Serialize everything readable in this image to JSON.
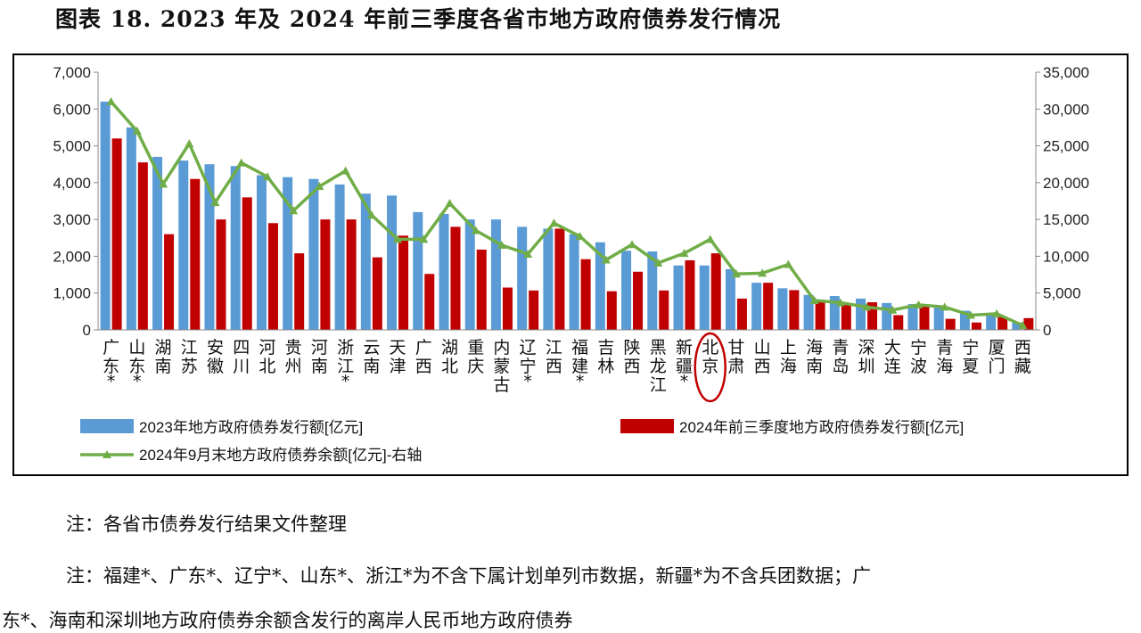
{
  "figure_title": "图表 18. 2023 年及 2024 年前三季度各省市地方政府债券发行情况",
  "notes": {
    "note1": "注：各省市债券发行结果文件整理",
    "note2_line1": "注：福建*、广东*、辽宁*、山东*、浙江*为不含下属计划单列市数据，新疆*为不含兵团数据；广",
    "note2_line2": "东*、海南和深圳地方政府债券余额含发行的离岸人民币地方政府债券"
  },
  "colors": {
    "bar2023": "#5b9bd5",
    "bar2024": "#c00000",
    "line": "#70ad47",
    "circle": "#c00000"
  },
  "chart_data": {
    "type": "bar",
    "categories": [
      {
        "lines": [
          "广",
          "东",
          "*"
        ]
      },
      {
        "lines": [
          "山",
          "东",
          "*"
        ]
      },
      {
        "lines": [
          "湖",
          "南"
        ]
      },
      {
        "lines": [
          "江",
          "苏"
        ]
      },
      {
        "lines": [
          "安",
          "徽"
        ]
      },
      {
        "lines": [
          "四",
          "川"
        ]
      },
      {
        "lines": [
          "河",
          "北"
        ]
      },
      {
        "lines": [
          "贵",
          "州"
        ]
      },
      {
        "lines": [
          "河",
          "南"
        ]
      },
      {
        "lines": [
          "浙",
          "江",
          "*"
        ]
      },
      {
        "lines": [
          "云",
          "南"
        ]
      },
      {
        "lines": [
          "天",
          "津"
        ]
      },
      {
        "lines": [
          "广",
          "西"
        ]
      },
      {
        "lines": [
          "湖",
          "北"
        ]
      },
      {
        "lines": [
          "重",
          "庆"
        ]
      },
      {
        "lines": [
          "内",
          "蒙",
          "古"
        ]
      },
      {
        "lines": [
          "辽",
          "宁",
          "*"
        ]
      },
      {
        "lines": [
          "江",
          "西"
        ]
      },
      {
        "lines": [
          "福",
          "建",
          "*"
        ]
      },
      {
        "lines": [
          "吉",
          "林"
        ]
      },
      {
        "lines": [
          "陕",
          "西"
        ]
      },
      {
        "lines": [
          "黑",
          "龙",
          "江"
        ]
      },
      {
        "lines": [
          "新",
          "疆",
          "*"
        ]
      },
      {
        "lines": [
          "北",
          "京"
        ]
      },
      {
        "lines": [
          "甘",
          "肃"
        ]
      },
      {
        "lines": [
          "山",
          "西"
        ]
      },
      {
        "lines": [
          "上",
          "海"
        ]
      },
      {
        "lines": [
          "海",
          "南"
        ]
      },
      {
        "lines": [
          "青",
          "岛"
        ]
      },
      {
        "lines": [
          "深",
          "圳"
        ]
      },
      {
        "lines": [
          "大",
          "连"
        ]
      },
      {
        "lines": [
          "宁",
          "波"
        ]
      },
      {
        "lines": [
          "青",
          "海"
        ]
      },
      {
        "lines": [
          "宁",
          "夏"
        ]
      },
      {
        "lines": [
          "厦",
          "门"
        ]
      },
      {
        "lines": [
          "西",
          "藏"
        ]
      }
    ],
    "y_left": {
      "min": 0,
      "max": 7000,
      "ticks": [
        "0",
        "1,000",
        "2,000",
        "3,000",
        "4,000",
        "5,000",
        "6,000",
        "7,000"
      ]
    },
    "y_right": {
      "min": 0,
      "max": 35000,
      "ticks": [
        "0",
        "5,000",
        "10,000",
        "15,000",
        "20,000",
        "25,000",
        "30,000",
        "35,000"
      ]
    },
    "series": [
      {
        "name": "2023年地方政府债券发行额[亿元]",
        "axis": "left",
        "kind": "bar",
        "values": [
          6200,
          5500,
          4700,
          4600,
          4500,
          4450,
          4200,
          4150,
          4100,
          3950,
          3700,
          3650,
          3200,
          3150,
          3000,
          3000,
          2800,
          2750,
          2600,
          2380,
          2150,
          2130,
          1750,
          1750,
          1650,
          1280,
          1130,
          950,
          920,
          850,
          730,
          700,
          600,
          520,
          450,
          200
        ]
      },
      {
        "name": "2024年前三季度地方政府债券发行额[亿元]",
        "axis": "left",
        "kind": "bar",
        "values": [
          5200,
          4550,
          2600,
          4100,
          3000,
          3600,
          2900,
          2080,
          3000,
          3000,
          1970,
          2560,
          1520,
          2800,
          2180,
          1150,
          1070,
          2750,
          1920,
          1050,
          1580,
          1070,
          1890,
          2080,
          850,
          1280,
          1080,
          800,
          700,
          750,
          400,
          650,
          300,
          200,
          350,
          320
        ]
      },
      {
        "name": "2024年9月末地方政府债券余额[亿元]-右轴",
        "axis": "right",
        "kind": "line",
        "values": [
          31000,
          27000,
          19800,
          25300,
          17300,
          22700,
          20800,
          16200,
          19500,
          21600,
          15600,
          12300,
          12300,
          17200,
          13500,
          11500,
          10300,
          14500,
          12700,
          9500,
          11600,
          9100,
          10400,
          12300,
          7600,
          7700,
          8900,
          4000,
          3700,
          3100,
          2700,
          3400,
          3100,
          2000,
          2200,
          600
        ]
      }
    ],
    "highlight": "北京"
  }
}
